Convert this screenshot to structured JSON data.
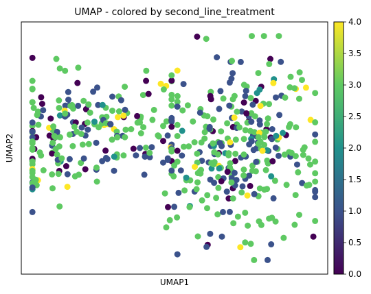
{
  "chart_data": {
    "type": "scatter",
    "title": "UMAP - colored by second_line_treatment",
    "xlabel": "UMAP1",
    "ylabel": "UMAP2",
    "xticks_shown": false,
    "yticks_shown": false,
    "grid": false,
    "colorbar": {
      "colormap": "viridis",
      "min": 0.0,
      "max": 4.0,
      "ticks": [
        "0.0",
        "0.5",
        "1.0",
        "1.5",
        "2.0",
        "2.5",
        "3.0",
        "3.5",
        "4.0"
      ],
      "colors": [
        "#440154",
        "#3b528b",
        "#21918c",
        "#5ec962",
        "#fde725"
      ]
    },
    "x": [],
    "y": [],
    "value": []
  }
}
